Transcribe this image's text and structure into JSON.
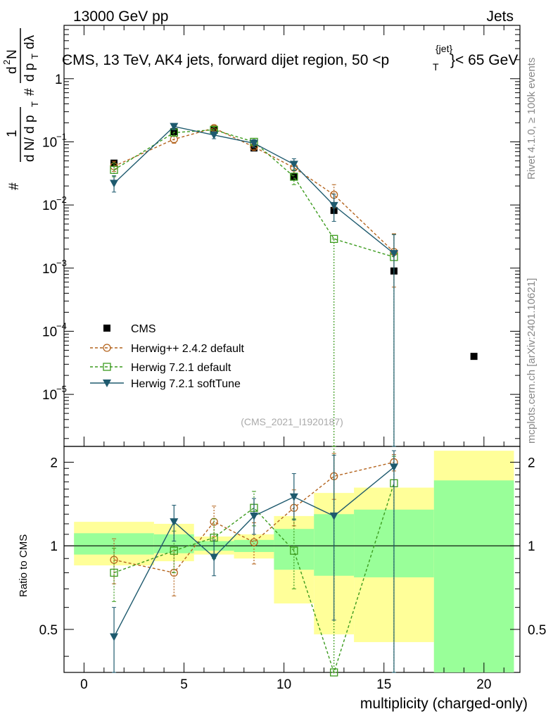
{
  "header": {
    "left": "13000 GeV pp",
    "right": "Jets"
  },
  "side_labels": {
    "rivet": "Rivet 4.1.0, ≥ 100k events",
    "mcplots": "mcplots.cern.ch [arXiv:2401.10621]"
  },
  "colors": {
    "cms": "#000000",
    "herwigpp": "#b4641e",
    "herwig721": "#3c9b1e",
    "softtune": "#1e5a6e",
    "band_yellow": "#ffff99",
    "band_green": "#99ff99"
  },
  "chart_data": [
    {
      "type": "scatter",
      "panel": "main",
      "title": "CMS, 13 TeV, AK4 jets, forward dijet region, 50 <p",
      "title_sup": "{jet}",
      "title_sub": "T",
      "title_end": "}< 65 GeV",
      "ylabel_parts": {
        "one": "1",
        "num_hash": "#",
        "num_d": "d",
        "num_N": "N",
        "den_d1": "d N/ d p",
        "den_T": "T",
        "den_2": "2",
        "rhs_hash": "#",
        "rhs_d2": "d",
        "rhs_2": "2",
        "rhs_N": "N",
        "rhs_dp": "d p",
        "rhs_T": "T",
        "rhs_dl": "dλ"
      },
      "yscale": "log",
      "ylim": [
        1.5e-06,
        7
      ],
      "xlim": [
        -1,
        21.8
      ],
      "y_ticks": [
        {
          "value": 1e-05,
          "base": "10",
          "exp": "−5"
        },
        {
          "value": 0.0001,
          "base": "10",
          "exp": "−4"
        },
        {
          "value": 0.001,
          "base": "10",
          "exp": "−3"
        },
        {
          "value": 0.01,
          "base": "10",
          "exp": "−2"
        },
        {
          "value": 0.1,
          "base": "10",
          "exp": "−1"
        },
        {
          "value": 1,
          "base": "1",
          "exp": ""
        }
      ],
      "watermark": "(CMS_2021_I1920187)",
      "legend": [
        "CMS",
        "Herwig++ 2.4.2 default",
        "Herwig 7.2.1 default",
        "Herwig 7.2.1 softTune"
      ],
      "series": [
        {
          "name": "CMS",
          "style": "square_filled",
          "x": [
            1.5,
            4.5,
            6.5,
            8.5,
            10.5,
            12.5,
            15.5,
            19.5
          ],
          "y": [
            0.046,
            0.145,
            0.155,
            0.08,
            0.028,
            0.0082,
            0.0009,
            4e-05
          ]
        },
        {
          "name": "Herwig++ 2.4.2 default",
          "style": "circle_open_dashed",
          "x": [
            1.5,
            4.5,
            6.5,
            8.5,
            10.5,
            12.5,
            15.5
          ],
          "y": [
            0.041,
            0.11,
            0.165,
            0.083,
            0.039,
            0.0145,
            0.0018
          ],
          "yerr_low": [
            0.034,
            0.095,
            0.148,
            0.074,
            0.032,
            0.009,
            0.0005
          ],
          "yerr_high": [
            0.049,
            0.125,
            0.18,
            0.093,
            0.048,
            0.021,
            0.0035
          ]
        },
        {
          "name": "Herwig 7.2.1 default",
          "style": "square_open_dashed",
          "x": [
            1.5,
            4.5,
            6.5,
            8.5,
            10.5,
            12.5,
            15.5
          ],
          "y": [
            0.036,
            0.14,
            0.155,
            0.1,
            0.028,
            0.0029,
            0.0015
          ],
          "yerr_low": [
            0.028,
            0.125,
            0.14,
            0.088,
            0.021,
            1e-07,
            1e-07
          ],
          "yerr_high": [
            0.046,
            0.158,
            0.172,
            0.113,
            0.036,
            0.0029,
            0.0034
          ]
        },
        {
          "name": "Herwig 7.2.1 softTune",
          "style": "triangle_down_filled",
          "x": [
            1.5,
            4.5,
            6.5,
            8.5,
            10.5,
            12.5,
            15.5
          ],
          "y": [
            0.022,
            0.175,
            0.128,
            0.095,
            0.044,
            0.0098,
            0.0017
          ],
          "yerr_low": [
            0.016,
            0.155,
            0.112,
            0.082,
            0.035,
            0.0055,
            1e-07
          ],
          "yerr_high": [
            0.029,
            0.195,
            0.145,
            0.108,
            0.054,
            0.0148,
            0.0034
          ]
        }
      ]
    },
    {
      "type": "scatter",
      "panel": "ratio",
      "ylabel": "Ratio to CMS",
      "xlabel": "multiplicity (charged-only)",
      "ylim": [
        0.35,
        2.28
      ],
      "xlim": [
        -1,
        21.8
      ],
      "x_ticks": [
        0,
        5,
        10,
        15,
        20
      ],
      "y_ticks": [
        0.5,
        1,
        2
      ],
      "reference_line": 1,
      "bands": {
        "edges": [
          -0.5,
          3.5,
          5.5,
          7.5,
          9.5,
          11.5,
          13.5,
          17.5,
          21.5
        ],
        "yellow_low": [
          0.85,
          0.88,
          0.93,
          0.9,
          0.62,
          0.48,
          0.45,
          0.34
        ],
        "yellow_high": [
          1.22,
          1.2,
          1.08,
          1.1,
          1.28,
          1.55,
          1.62,
          2.2
        ],
        "green_low": [
          0.93,
          0.94,
          0.96,
          0.95,
          0.82,
          0.78,
          0.77,
          0.34
        ],
        "green_high": [
          1.11,
          1.1,
          1.04,
          1.05,
          1.15,
          1.3,
          1.35,
          1.72
        ]
      },
      "series": [
        {
          "name": "Herwig++ 2.4.2 default",
          "x": [
            1.5,
            4.5,
            6.5,
            8.5,
            10.5,
            12.5,
            15.5
          ],
          "y": [
            0.89,
            0.8,
            1.22,
            1.03,
            1.37,
            1.78,
            2.0
          ],
          "yerr_low": [
            0.73,
            0.66,
            1.08,
            0.86,
            1.18,
            1.47,
            1.86
          ],
          "yerr_high": [
            1.06,
            0.96,
            1.39,
            1.21,
            1.59,
            2.15,
            2.13
          ]
        },
        {
          "name": "Herwig 7.2.1 default",
          "x": [
            1.5,
            4.5,
            6.5,
            8.5,
            10.5,
            12.5,
            15.5
          ],
          "y": [
            0.8,
            0.96,
            1.07,
            1.37,
            0.96,
            0.35,
            1.68
          ],
          "yerr_low": [
            0.63,
            0.8,
            0.9,
            1.18,
            0.7,
            0.35,
            0.35
          ],
          "yerr_high": [
            0.98,
            1.13,
            1.25,
            1.57,
            1.25,
            2.28,
            2.1
          ]
        },
        {
          "name": "Herwig 7.2.1 softTune",
          "x": [
            1.5,
            4.5,
            6.5,
            8.5,
            10.5,
            12.5,
            15.5
          ],
          "y": [
            0.47,
            1.22,
            0.91,
            1.28,
            1.5,
            1.28,
            1.92
          ],
          "yerr_low": [
            0.35,
            1.04,
            0.78,
            1.1,
            1.24,
            0.54,
            0.35
          ],
          "yerr_high": [
            0.6,
            1.4,
            1.05,
            1.48,
            1.82,
            2.12,
            2.2
          ]
        }
      ]
    }
  ]
}
